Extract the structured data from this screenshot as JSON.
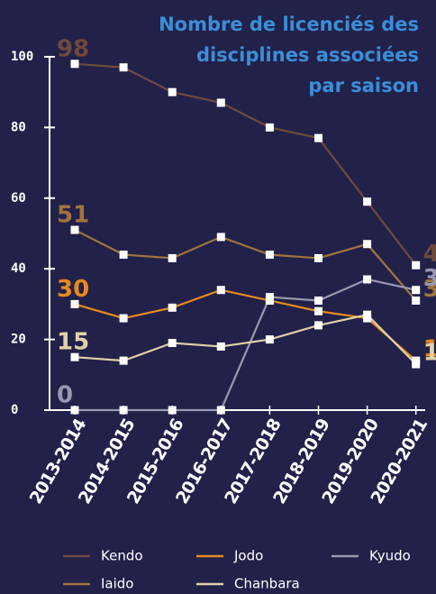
{
  "chart_data": {
    "type": "line",
    "title": [
      "Nombre de licenciés des",
      "disciplines associées",
      "par saison"
    ],
    "categories": [
      "2013-2014",
      "2014-2015",
      "2015-2016",
      "2016-2017",
      "2017-2018",
      "2018-2019",
      "2019-2020",
      "2020-2021"
    ],
    "series": [
      {
        "name": "Kendo",
        "color": "#6e4a3c",
        "values": [
          98,
          97,
          90,
          87,
          80,
          77,
          59,
          41
        ]
      },
      {
        "name": "Iaido",
        "color": "#a0743c",
        "values": [
          51,
          44,
          43,
          49,
          44,
          43,
          47,
          31
        ]
      },
      {
        "name": "Jodo",
        "color": "#e8891e",
        "values": [
          30,
          26,
          29,
          34,
          31,
          28,
          26,
          14
        ]
      },
      {
        "name": "Kyudo",
        "color": "#9a98b0",
        "values": [
          0,
          0,
          0,
          0,
          32,
          31,
          37,
          34
        ]
      },
      {
        "name": "Chanbara",
        "color": "#e0d0a8",
        "values": [
          15,
          14,
          19,
          18,
          20,
          24,
          27,
          13
        ]
      }
    ],
    "ylim": [
      0,
      100
    ],
    "yticks": [
      0,
      20,
      40,
      60,
      80,
      100
    ]
  }
}
